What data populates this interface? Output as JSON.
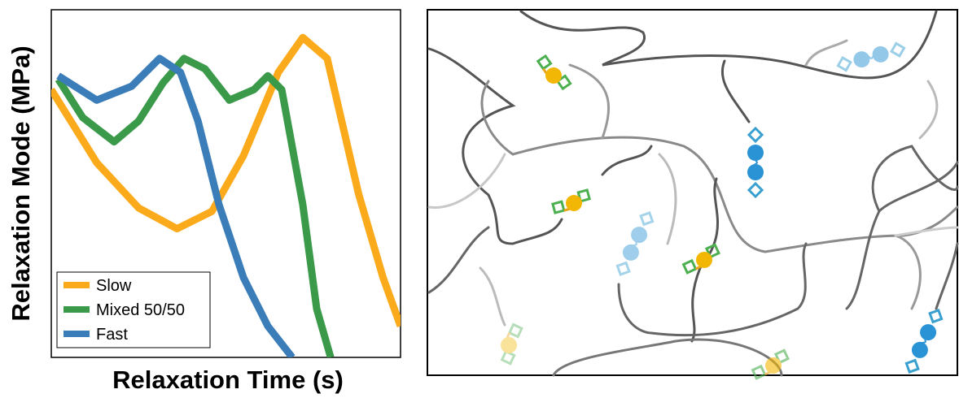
{
  "chart_data": {
    "type": "line",
    "xlabel": "Relaxation Time (s)",
    "ylabel": "Relaxation Mode (MPa)",
    "xlim": [
      0,
      100
    ],
    "ylim": [
      0,
      100
    ],
    "series": [
      {
        "name": "Slow",
        "color": "#fbaa1c",
        "x": [
          0,
          13,
          25,
          36,
          46,
          55,
          65,
          72,
          79,
          88,
          95,
          100
        ],
        "values": [
          77,
          56,
          43,
          37,
          42,
          58,
          82,
          92,
          86,
          47,
          23,
          9
        ]
      },
      {
        "name": "Mixed 50/50",
        "color": "#3a9a4a",
        "x": [
          2,
          9,
          18,
          25,
          32,
          38,
          44,
          51,
          58,
          62,
          66,
          72,
          76,
          80
        ],
        "values": [
          80,
          69,
          62,
          68,
          79,
          86,
          83,
          74,
          77,
          81,
          77,
          44,
          14,
          0
        ]
      },
      {
        "name": "Fast",
        "color": "#3a7db8",
        "x": [
          2,
          13,
          23,
          31,
          37,
          42,
          48,
          55,
          62,
          69
        ],
        "values": [
          81,
          74,
          78,
          86,
          82,
          68,
          44,
          23,
          9,
          0
        ]
      }
    ]
  }
}
